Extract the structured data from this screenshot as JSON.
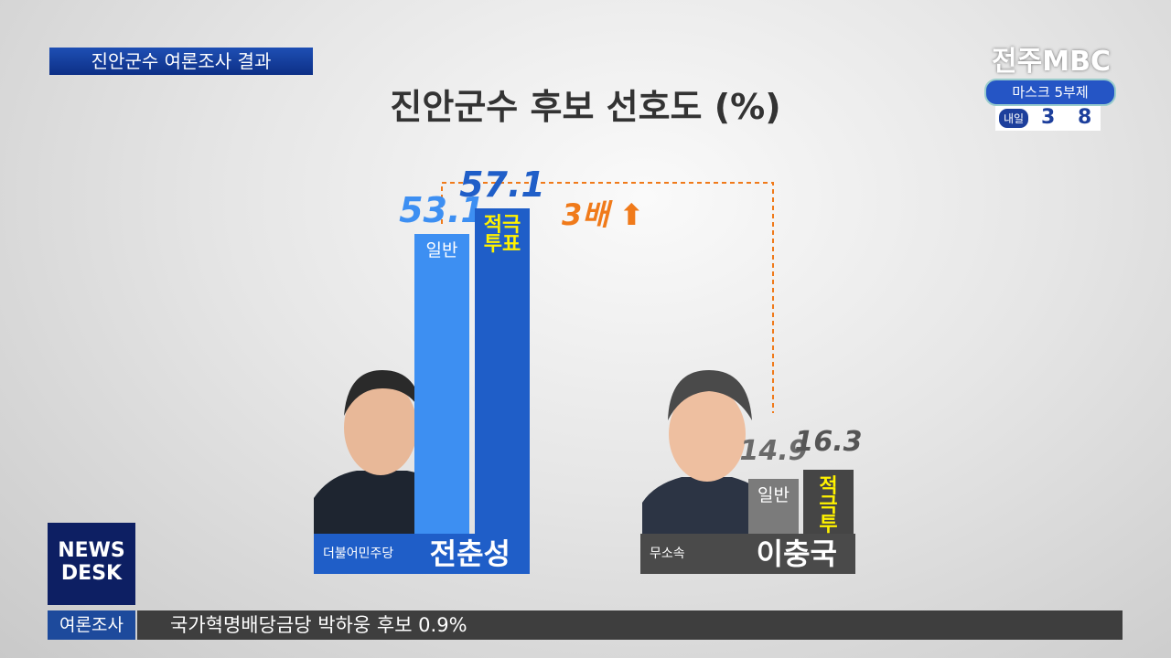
{
  "header": {
    "caption": "진안군수 여론조사 결과",
    "logo": "전주MBC",
    "mask_label": "마스크 5부제",
    "tomorrow_label": "내일",
    "tomorrow_digits": [
      "3",
      "8"
    ]
  },
  "chart_data": {
    "type": "bar",
    "title": "진안군수 후보 선호도 (%)",
    "categories": [
      "전춘성",
      "이충국"
    ],
    "parties": [
      "더불어민주당",
      "무소속"
    ],
    "series": [
      {
        "name": "일반",
        "colors": [
          "#3d8ff2",
          "#7b7b7b"
        ],
        "label_color": "#ffffff",
        "values": [
          53.1,
          14.9
        ]
      },
      {
        "name": "적극 투표",
        "colors": [
          "#1f5ec8",
          "#454545"
        ],
        "label_color": "#fff200",
        "values": [
          57.1,
          16.3
        ]
      }
    ],
    "annotation": "3배"
  },
  "footer": {
    "brand": [
      "NEWS",
      "DESK"
    ],
    "section": "여론조사",
    "ticker": "국가혁명배당금당 박하웅 후보 0.9%"
  }
}
